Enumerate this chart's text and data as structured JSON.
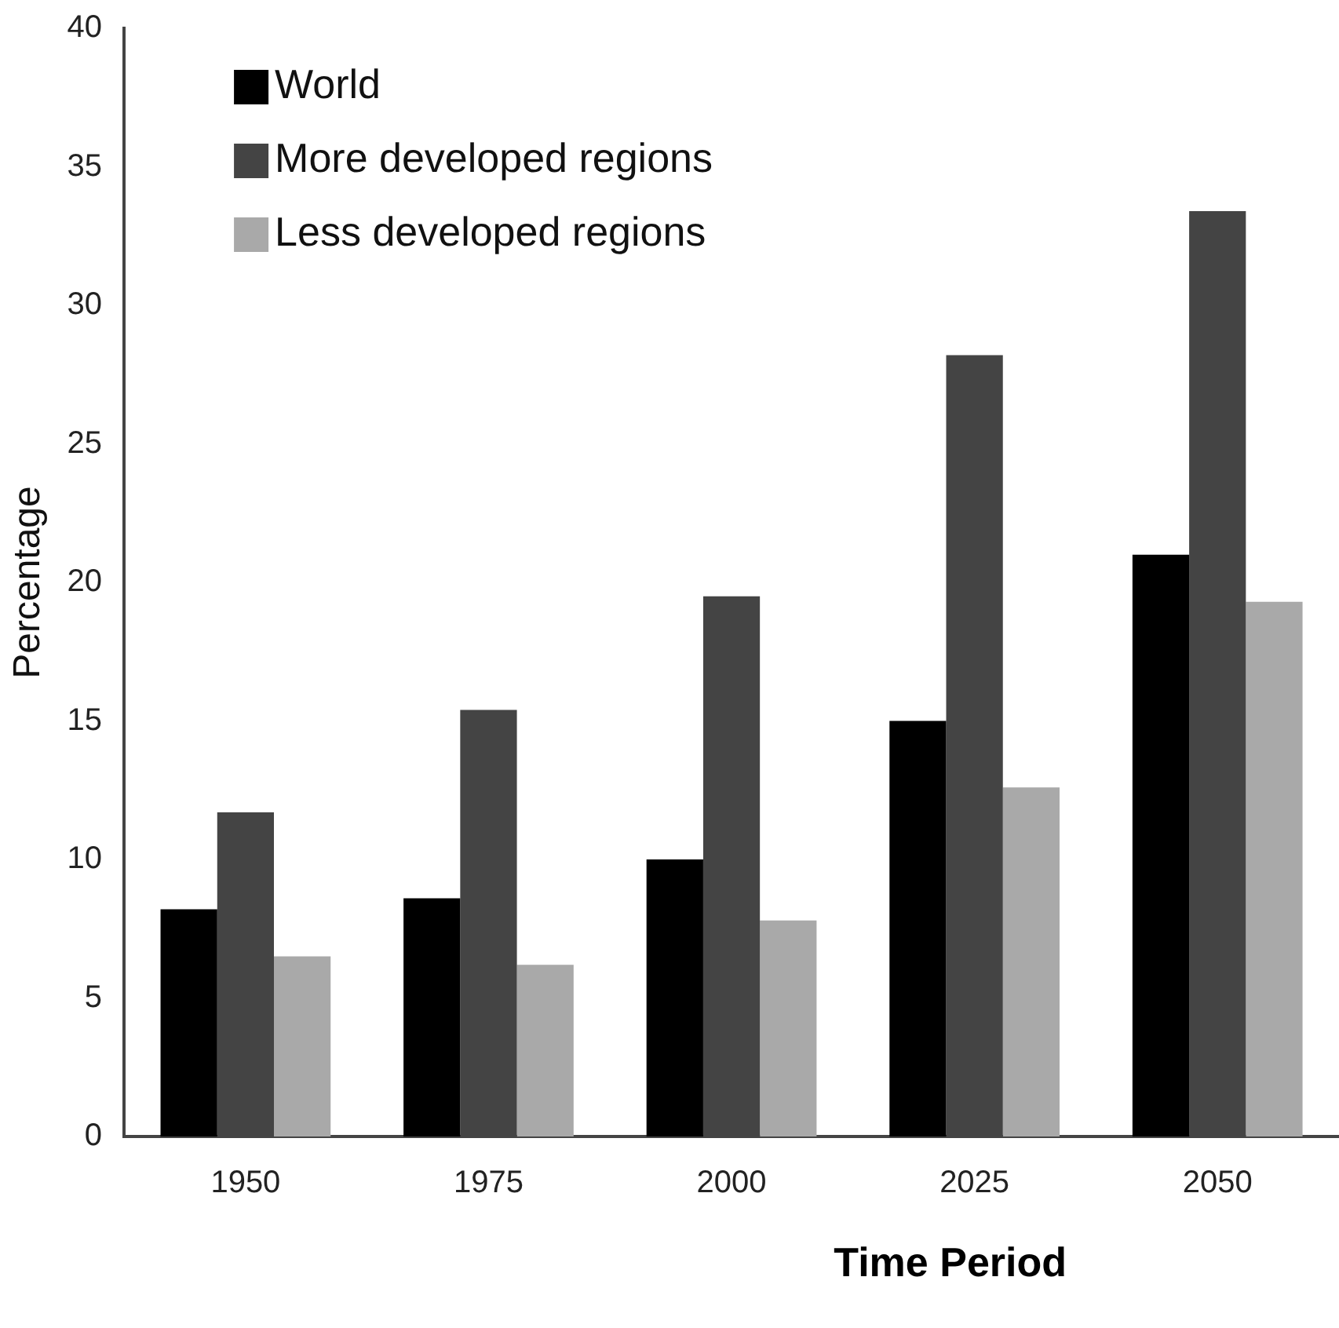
{
  "chart_data": {
    "type": "bar",
    "xlabel": "Time Period",
    "ylabel": "Percentage",
    "categories": [
      "1950",
      "1975",
      "2000",
      "2025",
      "2050"
    ],
    "series": [
      {
        "name": "World",
        "color": "#000000",
        "values": [
          8.2,
          8.6,
          10,
          15,
          21
        ]
      },
      {
        "name": "More developed regions",
        "color": "#444444",
        "values": [
          11.7,
          15.4,
          19.5,
          28.2,
          33.4
        ]
      },
      {
        "name": "Less developed regions",
        "color": "#a9a9a9",
        "values": [
          6.5,
          6.2,
          7.8,
          12.6,
          19.3
        ]
      }
    ],
    "ylim": [
      0,
      40
    ],
    "yticks": [
      0,
      5,
      10,
      15,
      20,
      25,
      30,
      35,
      40
    ],
    "grid": false,
    "legend": "top left"
  }
}
